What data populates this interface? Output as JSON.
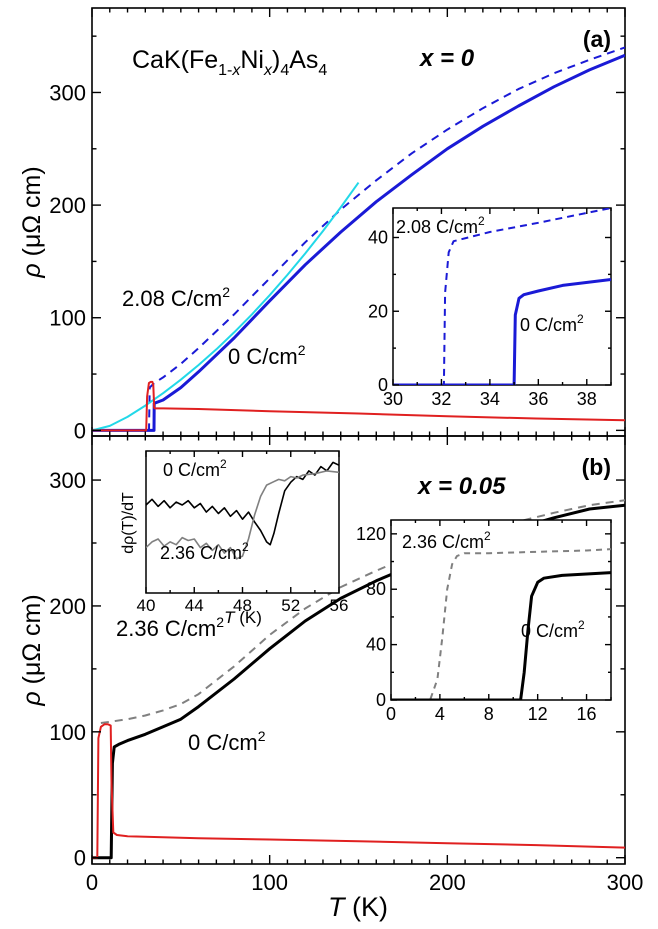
{
  "figure": {
    "shared_xlabel_symbol": "T",
    "shared_xlabel_unit": " (K)",
    "ylabel_symbol": "ρ",
    "ylabel_unit": " (μΩ cm)"
  },
  "chart_data": [
    {
      "id": "a",
      "type": "line",
      "panel_label": "(a)",
      "formula": {
        "p1": "CaK(Fe",
        "s1": "1-",
        "s1i": "x",
        "p2": "Ni",
        "s2": "x",
        "p3": ")",
        "s3": "4",
        "p4": "As",
        "s4": "4"
      },
      "composition": "x = 0",
      "xlim": [
        0,
        300
      ],
      "ylim": [
        -5,
        375
      ],
      "xticks": [
        0,
        100,
        200,
        300
      ],
      "yticks": [
        0,
        100,
        200,
        300
      ],
      "series": [
        {
          "name": "0 C/cm²",
          "label_main": "0 C/cm",
          "label_sup": "2",
          "color": "#1a1ad6",
          "dash": "none",
          "width": 3,
          "x": [
            0,
            34.9,
            35.0,
            40,
            50,
            60,
            80,
            100,
            120,
            140,
            160,
            180,
            200,
            220,
            240,
            260,
            280,
            300
          ],
          "y": [
            0,
            0,
            24,
            27,
            38,
            52,
            82,
            115,
            147,
            176,
            203,
            227,
            250,
            270,
            288,
            305,
            320,
            333
          ]
        },
        {
          "name": "2.08 C/cm²",
          "label_main": "2.08 C/cm",
          "label_sup": "2",
          "color": "#1a1ad6",
          "dash": "8,6",
          "width": 2,
          "x": [
            0,
            32.1,
            32.5,
            35,
            40,
            50,
            60,
            80,
            100,
            120,
            140,
            160,
            180,
            200,
            220,
            240,
            260,
            280,
            300
          ],
          "y": [
            0,
            0,
            38,
            42,
            47,
            59,
            73,
            103,
            135,
            167,
            196,
            222,
            246,
            267,
            286,
            303,
            317,
            329,
            340
          ]
        },
        {
          "name": "fit",
          "color": "#22d8e8",
          "dash": "none",
          "width": 2,
          "x": [
            0,
            10,
            20,
            30,
            40,
            50,
            60,
            70,
            80,
            90,
            100,
            110,
            120,
            130,
            140,
            150
          ],
          "y": [
            0,
            4,
            12,
            22,
            33,
            45,
            58,
            72,
            87,
            103,
            120,
            138,
            157,
            177,
            198,
            220
          ]
        },
        {
          "name": "red",
          "color": "#e02020",
          "dash": "none",
          "width": 2,
          "x": [
            0,
            30.5,
            31,
            32,
            33,
            34,
            34.5,
            35,
            35.5,
            40,
            60,
            100,
            150,
            200,
            250,
            300
          ],
          "y": [
            0,
            0,
            30,
            42,
            43,
            43,
            40,
            20,
            19.5,
            19.5,
            19,
            17,
            15,
            12.5,
            10.5,
            9
          ]
        }
      ],
      "inset": {
        "type": "line",
        "xlim": [
          30,
          39
        ],
        "ylim": [
          0,
          48
        ],
        "xticks": [
          30,
          32,
          34,
          36,
          38
        ],
        "yticks": [
          0,
          20,
          40
        ],
        "labels": [
          {
            "main": "2.08 C/cm",
            "sup": "2"
          },
          {
            "main": "0 C/cm",
            "sup": "2"
          }
        ],
        "series": [
          {
            "name": "2.08 C/cm²",
            "color": "#1a1ad6",
            "dash": "7,5",
            "width": 2,
            "x": [
              30,
              32.1,
              32.15,
              32.3,
              32.5,
              34,
              36,
              39
            ],
            "y": [
              0,
              0,
              25,
              36,
              39,
              41.5,
              44,
              48
            ]
          },
          {
            "name": "0 C/cm²",
            "color": "#1a1ad6",
            "dash": "none",
            "width": 3,
            "x": [
              30,
              35,
              35.05,
              35.2,
              35.4,
              36,
              37,
              39
            ],
            "y": [
              0,
              0,
              19,
              23.5,
              24.5,
              25.5,
              27,
              28.6
            ]
          }
        ]
      }
    },
    {
      "id": "b",
      "type": "line",
      "panel_label": "(b)",
      "composition": "x = 0.05",
      "xlim": [
        0,
        300
      ],
      "ylim": [
        -5,
        335
      ],
      "xticks": [
        0,
        100,
        200,
        300
      ],
      "yticks": [
        0,
        100,
        200,
        300
      ],
      "series": [
        {
          "name": "0 C/cm²",
          "label_main": "0 C/cm",
          "label_sup": "2",
          "color": "#000000",
          "dash": "none",
          "width": 3,
          "x": [
            0,
            10.8,
            11.5,
            12.5,
            15,
            20,
            30,
            40,
            50,
            60,
            80,
            100,
            120,
            140,
            160,
            180,
            200,
            220,
            240,
            260,
            280,
            300
          ],
          "y": [
            0,
            0,
            75,
            88,
            90,
            93,
            98,
            104,
            110,
            120,
            142,
            166,
            188,
            206,
            220,
            232,
            243,
            253,
            262,
            270,
            277,
            280
          ]
        },
        {
          "name": "2.36 C/cm²",
          "label_main": "2.36 C/cm",
          "label_sup": "2",
          "color": "#808080",
          "dash": "8,6",
          "width": 2,
          "x": [
            5,
            10,
            20,
            30,
            40,
            50,
            60,
            80,
            100,
            120,
            140,
            160,
            180,
            200,
            220,
            240,
            260,
            280,
            300
          ],
          "y": [
            107,
            108,
            110,
            113,
            117,
            122,
            130,
            152,
            177,
            198,
            215,
            228,
            240,
            250,
            259,
            267,
            274,
            280,
            284
          ]
        },
        {
          "name": "red",
          "color": "#e02020",
          "dash": "none",
          "width": 2,
          "x": [
            0,
            3,
            3.6,
            5,
            7,
            9,
            10.5,
            11,
            12,
            14,
            20,
            60,
            100,
            150,
            200,
            250,
            300
          ],
          "y": [
            0,
            0,
            95,
            104,
            106,
            106,
            105,
            60,
            20,
            18,
            17,
            15.5,
            14.5,
            13,
            11.5,
            10,
            8
          ]
        }
      ],
      "inset": {
        "type": "line",
        "xlim": [
          40,
          56
        ],
        "ylim": [
          0,
          10
        ],
        "xticks": [
          40,
          44,
          48,
          52,
          56
        ],
        "ylabel": "dρ(T)/dT",
        "xlabel_symbol": "T",
        "xlabel_unit": " (K)",
        "labels": [
          {
            "main": "0 C/cm",
            "sup": "2"
          },
          {
            "main": "2.36 C/cm",
            "sup": "2"
          }
        ],
        "series": [
          {
            "name": "0 C/cm²",
            "color": "#000000",
            "dash": "none",
            "width": 1.6,
            "x": [
              40,
              40.5,
              41,
              41.5,
              42,
              42.5,
              43,
              43.5,
              44,
              44.5,
              45,
              45.5,
              46,
              46.5,
              47,
              47.5,
              48,
              48.5,
              49,
              49.5,
              50,
              50.3,
              50.6,
              51,
              51.5,
              52,
              52.5,
              53,
              53.5,
              54,
              54.5,
              55,
              55.5,
              56
            ],
            "y": [
              6.2,
              6.6,
              6.1,
              6.5,
              6.0,
              6.4,
              6.2,
              6.5,
              6.0,
              6.3,
              5.7,
              6.1,
              5.6,
              6.0,
              5.4,
              5.8,
              5.2,
              5.7,
              5.0,
              4.4,
              3.6,
              3.4,
              4.2,
              5.6,
              7.2,
              7.8,
              8.2,
              8.0,
              8.6,
              8.3,
              8.9,
              8.6,
              9.2,
              9.0
            ]
          },
          {
            "name": "2.36 C/cm²",
            "color": "#808080",
            "dash": "none",
            "width": 1.6,
            "x": [
              40,
              40.5,
              41,
              41.5,
              42,
              42.5,
              43,
              43.5,
              44,
              44.5,
              45,
              45.5,
              46,
              46.5,
              47,
              47.5,
              48,
              48.5,
              49,
              49.5,
              50,
              50.5,
              51,
              51.5,
              52,
              52.5,
              53,
              54,
              55,
              56
            ],
            "y": [
              3.2,
              3.6,
              3.8,
              3.3,
              3.6,
              3.4,
              3.9,
              3.7,
              3.8,
              3.2,
              3.5,
              3.0,
              3.4,
              2.8,
              3.2,
              2.4,
              2.6,
              3.8,
              5.5,
              6.8,
              7.6,
              7.8,
              8.0,
              7.9,
              8.2,
              8.1,
              8.3,
              8.4,
              8.6,
              8.5
            ]
          }
        ]
      }
    }
  ]
}
